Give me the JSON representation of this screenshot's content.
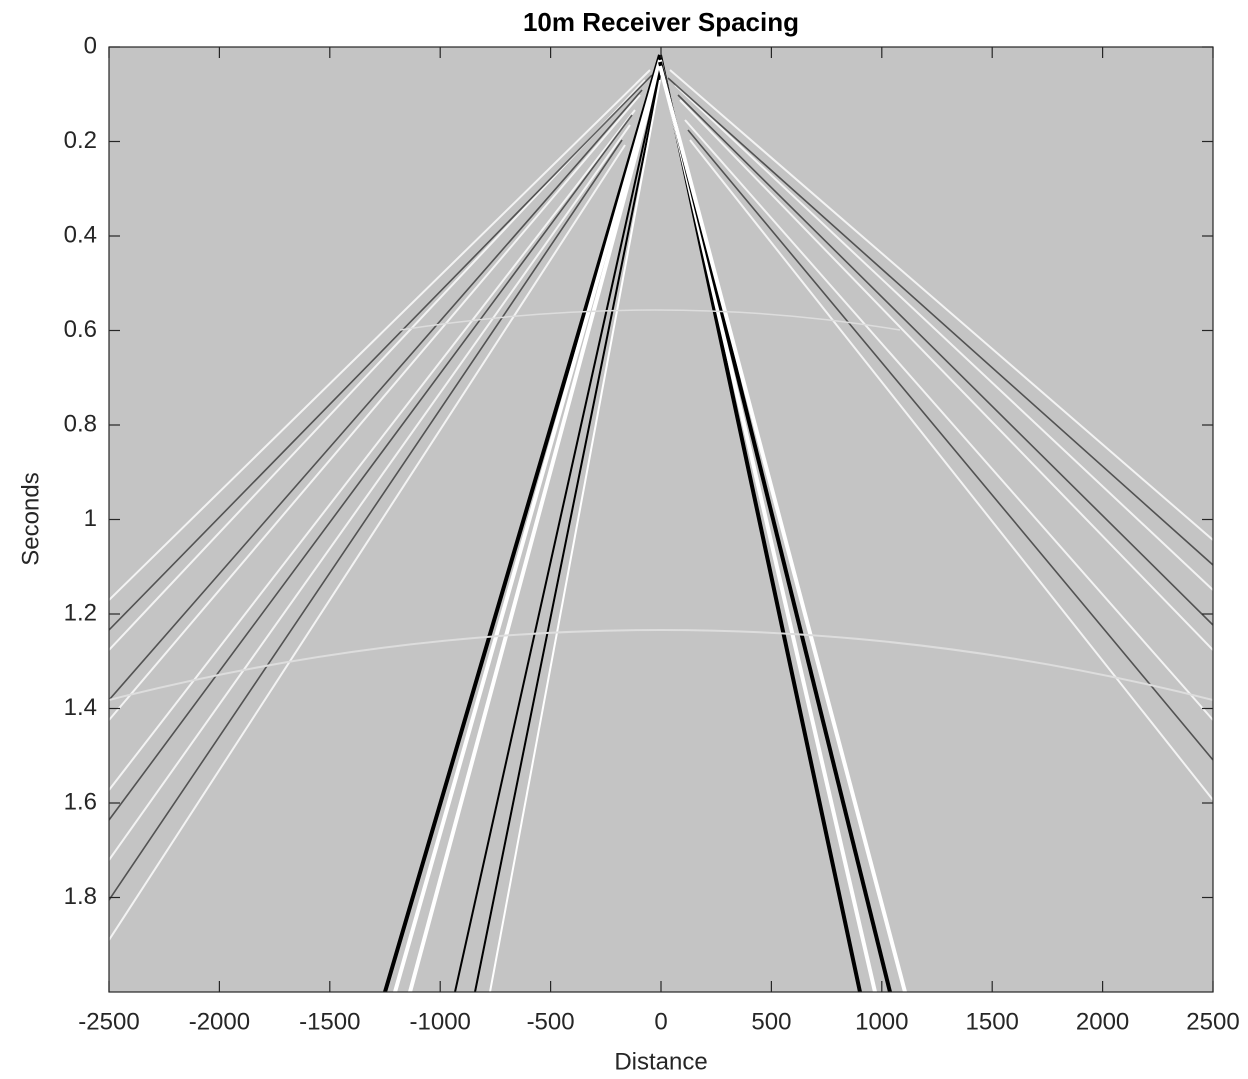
{
  "chart_data": {
    "type": "image",
    "title": "10m Receiver Spacing",
    "xlabel": "Distance",
    "ylabel": "Seconds",
    "xlim": [
      -2500,
      2500
    ],
    "ylim": [
      0,
      2
    ],
    "y_reversed": true,
    "xticks": [
      -2500,
      -2000,
      -1500,
      -1000,
      -500,
      0,
      500,
      1000,
      1500,
      2000,
      2500
    ],
    "yticks": [
      0,
      0.2,
      0.4,
      0.6,
      0.8,
      1,
      1.2,
      1.4,
      1.6,
      1.8
    ],
    "background_color": "#c4c4c4"
  }
}
